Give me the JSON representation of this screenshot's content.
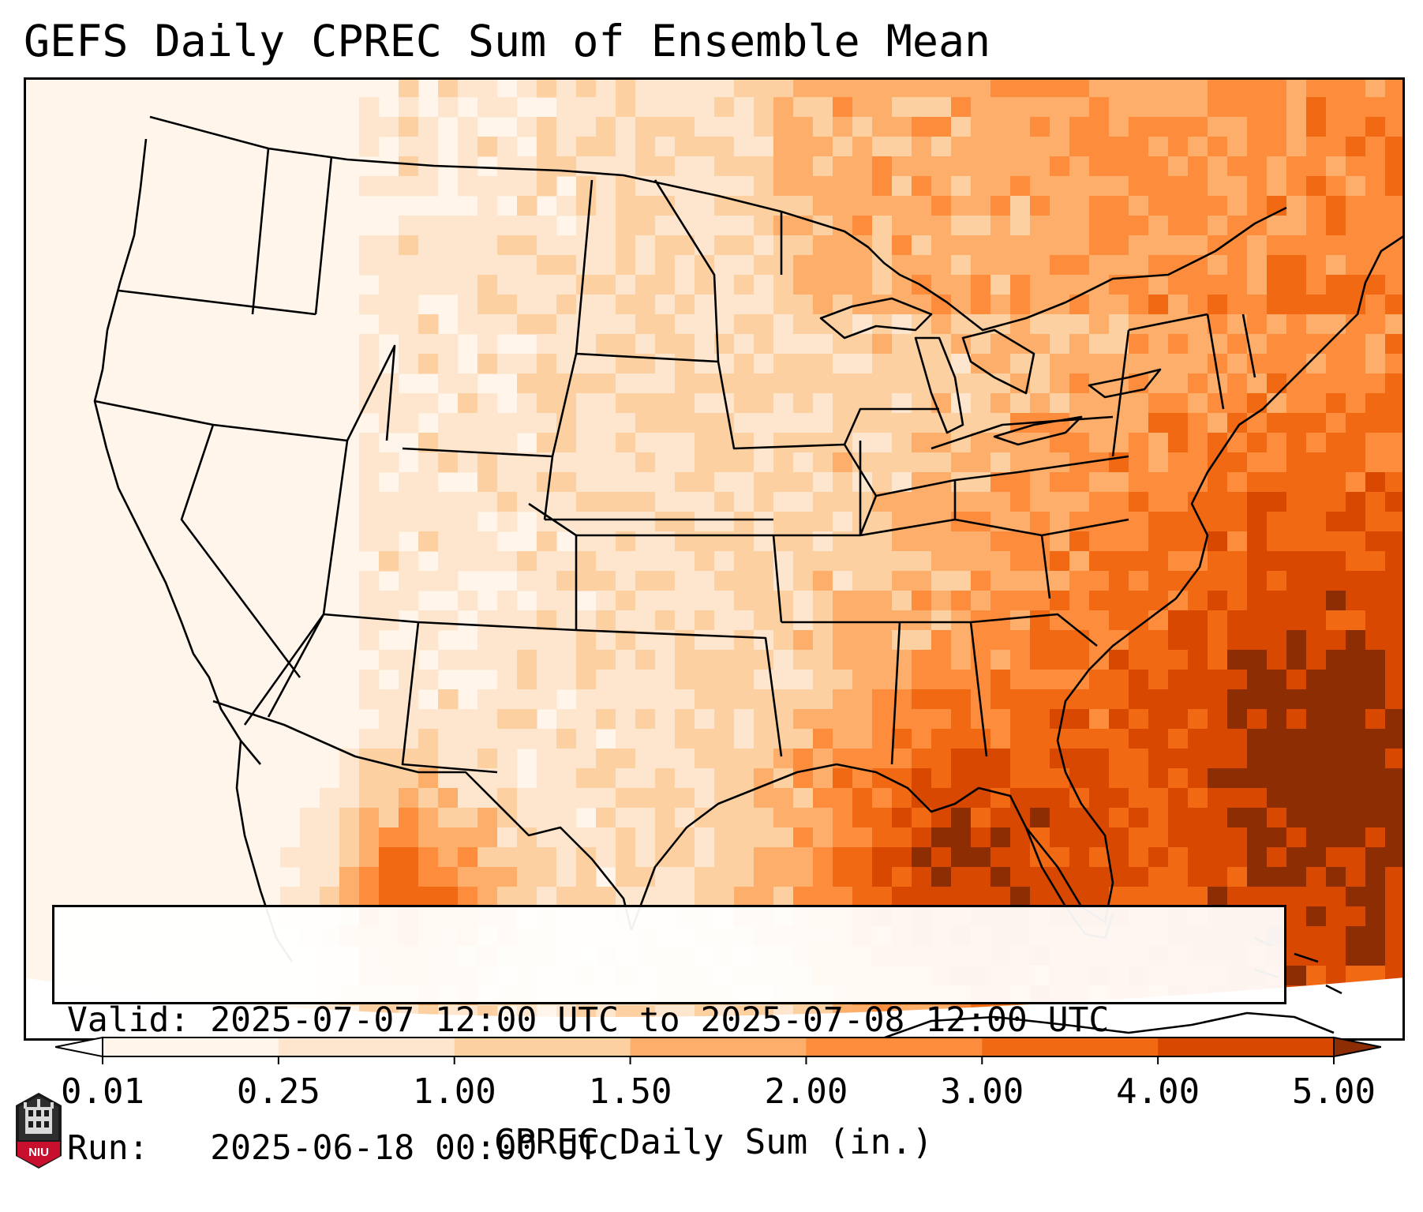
{
  "title": "GEFS Daily CPREC Sum of Ensemble Mean",
  "info": {
    "valid_label": "Valid:",
    "valid_value": "2025-07-07 12:00 UTC to 2025-07-08 12:00 UTC",
    "run_label": "Run:",
    "run_value": "2025-06-18 00:00 UTC"
  },
  "colorbar": {
    "label": "CPREC Daily Sum (in.)",
    "ticks": [
      "0.01",
      "0.25",
      "1.00",
      "1.50",
      "2.00",
      "3.00",
      "4.00",
      "5.00"
    ],
    "colors": [
      "#fff5eb",
      "#fee6ce",
      "#fdd0a2",
      "#fdae6b",
      "#fd8d3c",
      "#f16913",
      "#d94801",
      "#8c2d04"
    ],
    "under_color": "#ffffff",
    "over_color": "#8c2d04",
    "extend": "both"
  },
  "map": {
    "projection": "lambert-conformal",
    "region": "CONUS",
    "borders": [
      "coastlines",
      "country-borders",
      "state-borders"
    ]
  },
  "logo": {
    "text": "NIU",
    "color": "#c8102e"
  }
}
